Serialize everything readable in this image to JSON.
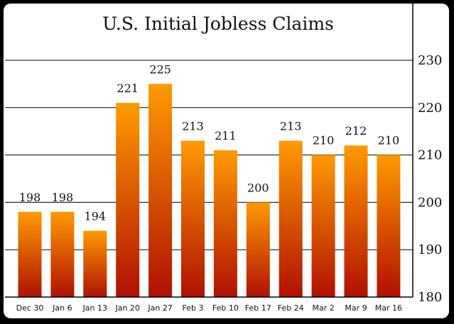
{
  "chart_data": {
    "type": "bar",
    "title": "U.S. Initial Jobless Claims",
    "xlabel": "",
    "ylabel": "",
    "categories": [
      "Dec 30",
      "Jan 6",
      "Jan 13",
      "Jan 20",
      "Jan 27",
      "Feb 3",
      "Feb 10",
      "Feb 17",
      "Feb 24",
      "Mar 2",
      "Mar 9",
      "Mar 16"
    ],
    "values": [
      198,
      198,
      194,
      221,
      225,
      213,
      211,
      200,
      213,
      210,
      212,
      210
    ],
    "data_labels": [
      "198",
      "198",
      "194",
      "221",
      "225",
      "213",
      "211",
      "200",
      "213",
      "210",
      "212",
      "210"
    ],
    "ylim": [
      180,
      230
    ],
    "yticks": [
      180,
      190,
      200,
      210,
      220,
      230
    ],
    "ytick_labels": [
      "180",
      "190",
      "200",
      "210",
      "220",
      "230"
    ],
    "y_axis_side": "right",
    "grid": true,
    "legend": "none",
    "colors": {
      "bar_top": "#ff9a00",
      "bar_bottom": "#b01000",
      "background": "#ffffff",
      "frame": "#000000"
    }
  }
}
